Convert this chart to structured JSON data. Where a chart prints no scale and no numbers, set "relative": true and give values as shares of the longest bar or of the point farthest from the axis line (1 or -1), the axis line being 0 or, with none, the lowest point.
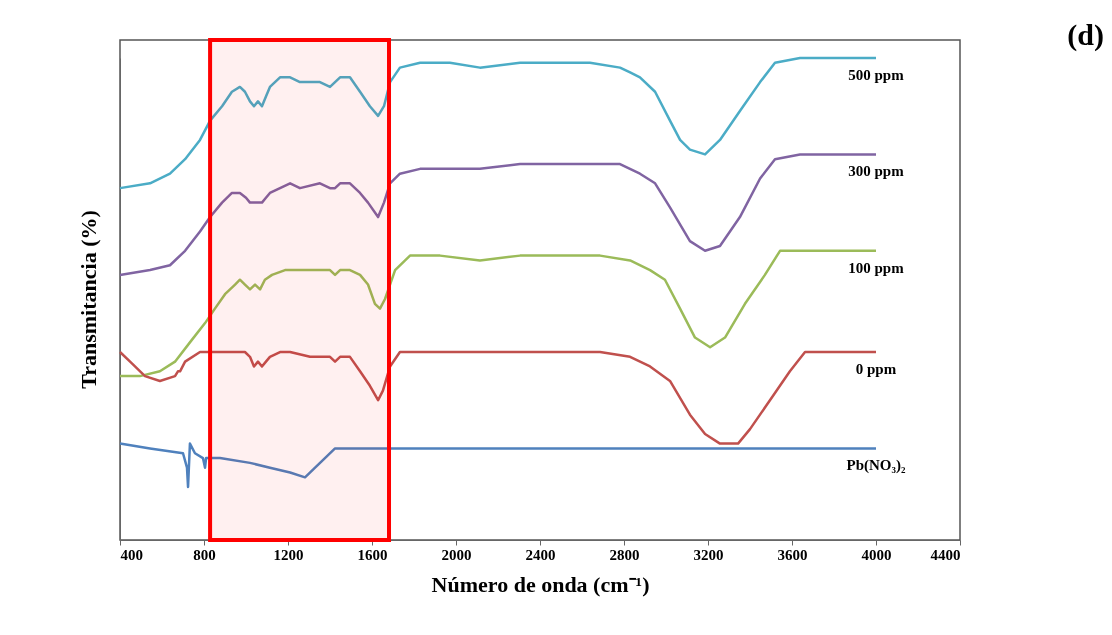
{
  "chart_data": {
    "type": "line",
    "xlabel": "Número de onda (cm⁻¹)",
    "ylabel": "Transmitancia (%)",
    "relative": true,
    "xlim": [
      400,
      4400
    ],
    "xticks": [
      400,
      800,
      1200,
      1600,
      2000,
      2400,
      2800,
      3200,
      3600,
      4000,
      4400
    ],
    "grid": false,
    "legend": false,
    "marker": "none",
    "line_style": "solid",
    "annotations": [
      "(d)"
    ],
    "bands": [
      {
        "axis": "x",
        "from": 829,
        "to": 1681,
        "color": "#ff0000"
      }
    ],
    "series": [
      {
        "name": "500 ppm",
        "color": "#4bacc6",
        "x": [
          400,
          543,
          638,
          710,
          781,
          829,
          886,
          933,
          971,
          995,
          1019,
          1038,
          1057,
          1076,
          1095,
          1114,
          1162,
          1210,
          1257,
          1352,
          1400,
          1424,
          1448,
          1495,
          1543,
          1590,
          1629,
          1657,
          1686,
          1733,
          1829,
          1971,
          2114,
          2305,
          2495,
          2638,
          2781,
          2829,
          2876,
          2948,
          3019,
          3067,
          3114,
          3186,
          3257,
          3352,
          3448,
          3519,
          3638,
          4000
        ],
        "values": [
          0.73,
          0.74,
          0.76,
          0.79,
          0.83,
          0.87,
          0.9,
          0.93,
          0.94,
          0.93,
          0.91,
          0.9,
          0.91,
          0.9,
          0.92,
          0.94,
          0.96,
          0.96,
          0.95,
          0.95,
          0.94,
          0.95,
          0.96,
          0.96,
          0.93,
          0.9,
          0.88,
          0.9,
          0.95,
          0.98,
          0.99,
          0.99,
          0.98,
          0.99,
          0.99,
          0.99,
          0.98,
          0.97,
          0.96,
          0.93,
          0.87,
          0.83,
          0.81,
          0.8,
          0.83,
          0.89,
          0.95,
          0.99,
          1.0,
          1.0
        ]
      },
      {
        "name": "300 ppm",
        "color": "#8064a2",
        "x": [
          400,
          543,
          638,
          710,
          781,
          829,
          886,
          933,
          971,
          1000,
          1019,
          1038,
          1057,
          1076,
          1095,
          1114,
          1162,
          1210,
          1257,
          1352,
          1400,
          1424,
          1448,
          1495,
          1543,
          1581,
          1629,
          1657,
          1686,
          1733,
          1829,
          1971,
          2114,
          2305,
          2495,
          2638,
          2781,
          2876,
          2948,
          3019,
          3114,
          3186,
          3257,
          3352,
          3448,
          3519,
          3638,
          4000
        ],
        "values": [
          0.55,
          0.56,
          0.57,
          0.6,
          0.64,
          0.67,
          0.7,
          0.72,
          0.72,
          0.71,
          0.7,
          0.7,
          0.7,
          0.7,
          0.71,
          0.72,
          0.73,
          0.74,
          0.73,
          0.74,
          0.73,
          0.73,
          0.74,
          0.74,
          0.72,
          0.7,
          0.67,
          0.7,
          0.74,
          0.76,
          0.77,
          0.77,
          0.77,
          0.78,
          0.78,
          0.78,
          0.78,
          0.76,
          0.74,
          0.69,
          0.62,
          0.6,
          0.61,
          0.67,
          0.75,
          0.79,
          0.8,
          0.8
        ]
      },
      {
        "name": "100 ppm",
        "color": "#9bbb59",
        "x": [
          400,
          495,
          590,
          662,
          733,
          805,
          852,
          900,
          948,
          971,
          995,
          1019,
          1043,
          1067,
          1090,
          1124,
          1186,
          1257,
          1352,
          1400,
          1424,
          1448,
          1495,
          1543,
          1581,
          1614,
          1638,
          1662,
          1710,
          1781,
          1924,
          2114,
          2305,
          2495,
          2686,
          2829,
          2924,
          2995,
          3067,
          3138,
          3210,
          3281,
          3376,
          3471,
          3543,
          3638,
          4000
        ],
        "values": [
          0.34,
          0.34,
          0.35,
          0.37,
          0.41,
          0.45,
          0.48,
          0.51,
          0.53,
          0.54,
          0.53,
          0.52,
          0.53,
          0.52,
          0.54,
          0.55,
          0.56,
          0.56,
          0.56,
          0.56,
          0.55,
          0.56,
          0.56,
          0.55,
          0.53,
          0.49,
          0.48,
          0.5,
          0.56,
          0.59,
          0.59,
          0.58,
          0.59,
          0.59,
          0.59,
          0.58,
          0.56,
          0.54,
          0.48,
          0.42,
          0.4,
          0.42,
          0.49,
          0.55,
          0.6,
          0.6,
          0.6
        ]
      },
      {
        "name": "0 ppm",
        "color": "#c0504d",
        "x": [
          400,
          448,
          519,
          590,
          662,
          676,
          686,
          710,
          781,
          829,
          924,
          995,
          1019,
          1038,
          1057,
          1076,
          1095,
          1114,
          1162,
          1210,
          1305,
          1400,
          1424,
          1448,
          1495,
          1543,
          1590,
          1629,
          1652,
          1686,
          1733,
          1876,
          2114,
          2305,
          2495,
          2686,
          2829,
          2924,
          3019,
          3114,
          3186,
          3257,
          3343,
          3400,
          3495,
          3590,
          3662,
          4000
        ],
        "values": [
          0.39,
          0.37,
          0.34,
          0.33,
          0.34,
          0.35,
          0.35,
          0.37,
          0.39,
          0.39,
          0.39,
          0.39,
          0.38,
          0.36,
          0.37,
          0.36,
          0.37,
          0.38,
          0.39,
          0.39,
          0.38,
          0.38,
          0.37,
          0.38,
          0.38,
          0.35,
          0.32,
          0.29,
          0.31,
          0.36,
          0.39,
          0.39,
          0.39,
          0.39,
          0.39,
          0.39,
          0.38,
          0.36,
          0.33,
          0.26,
          0.22,
          0.2,
          0.2,
          0.23,
          0.29,
          0.35,
          0.39,
          0.39
        ]
      },
      {
        "name": "Pb(NO₃)₂",
        "color": "#4f81bd",
        "x": [
          400,
          543,
          700,
          719,
          724,
          733,
          757,
          795,
          805,
          810,
          876,
          1019,
          1114,
          1210,
          1281,
          1329,
          1376,
          1424,
          1471,
          1638,
          1829,
          2114,
          2400,
          2686,
          3162,
          4000
        ],
        "values": [
          0.2,
          0.19,
          0.18,
          0.15,
          0.11,
          0.2,
          0.18,
          0.17,
          0.15,
          0.17,
          0.17,
          0.16,
          0.15,
          0.14,
          0.13,
          0.15,
          0.17,
          0.19,
          0.19,
          0.19,
          0.19,
          0.19,
          0.19,
          0.19,
          0.19,
          0.19
        ]
      }
    ]
  }
}
